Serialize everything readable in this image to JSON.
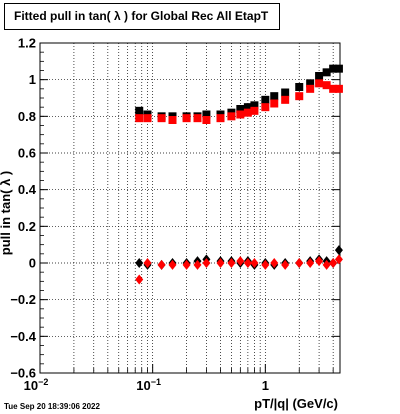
{
  "chart_data": {
    "type": "scatter",
    "title": "Fitted pull in tan( λ ) for Global Rec All EtapT",
    "xlabel": "pT/|q| (GeV/c)",
    "ylabel": "pull in tan( λ )",
    "xscale": "log",
    "xlim": [
      0.01,
      4.6
    ],
    "ylim": [
      -0.6,
      1.2
    ],
    "grid": true,
    "x_ticks": [
      {
        "v": 0.01,
        "label": "10",
        "sup": "−2"
      },
      {
        "v": 0.1,
        "label": "10",
        "sup": "−1"
      },
      {
        "v": 1,
        "label": "1",
        "sup": ""
      }
    ],
    "y_ticks": [
      {
        "v": -0.6,
        "label": "−0.6"
      },
      {
        "v": -0.4,
        "label": "−0.4"
      },
      {
        "v": -0.2,
        "label": "−0.2"
      },
      {
        "v": 0,
        "label": "0"
      },
      {
        "v": 0.2,
        "label": "0.2"
      },
      {
        "v": 0.4,
        "label": "0.4"
      },
      {
        "v": 0.6,
        "label": "0.6"
      },
      {
        "v": 0.8,
        "label": "0.8"
      },
      {
        "v": 1,
        "label": "1"
      },
      {
        "v": 1.2,
        "label": "1.2"
      }
    ],
    "series": [
      {
        "color": "#000000",
        "marker": "square",
        "x": [
          0.076,
          0.09,
          0.12,
          0.15,
          0.2,
          0.25,
          0.3,
          0.4,
          0.5,
          0.6,
          0.7,
          0.8,
          1.0,
          1.2,
          1.5,
          2.0,
          2.5,
          3.0,
          3.5,
          4.0,
          4.5
        ],
        "y": [
          0.83,
          0.81,
          0.8,
          0.8,
          0.8,
          0.8,
          0.81,
          0.81,
          0.82,
          0.84,
          0.85,
          0.86,
          0.89,
          0.91,
          0.93,
          0.96,
          0.98,
          1.02,
          1.04,
          1.06,
          1.06
        ]
      },
      {
        "color": "#ff0000",
        "marker": "square",
        "x": [
          0.076,
          0.09,
          0.12,
          0.15,
          0.2,
          0.25,
          0.3,
          0.4,
          0.5,
          0.6,
          0.7,
          0.8,
          1.0,
          1.2,
          1.5,
          2.0,
          2.5,
          3.0,
          3.5,
          4.0,
          4.5
        ],
        "y": [
          0.79,
          0.79,
          0.79,
          0.78,
          0.79,
          0.79,
          0.78,
          0.79,
          0.8,
          0.81,
          0.82,
          0.83,
          0.85,
          0.87,
          0.89,
          0.91,
          0.95,
          0.98,
          0.97,
          0.95,
          0.95
        ]
      },
      {
        "color": "#000000",
        "marker": "diamond",
        "x": [
          0.076,
          0.09,
          0.12,
          0.15,
          0.2,
          0.25,
          0.3,
          0.4,
          0.5,
          0.6,
          0.7,
          0.8,
          1.0,
          1.2,
          1.5,
          2.0,
          2.5,
          3.0,
          3.5,
          4.0,
          4.5
        ],
        "y": [
          0.0,
          -0.01,
          -0.01,
          0.0,
          0.0,
          0.01,
          0.02,
          0.01,
          0.01,
          0.0,
          0.01,
          -0.01,
          0.0,
          -0.01,
          0.0,
          0.0,
          0.01,
          0.02,
          0.01,
          0.0,
          0.07
        ]
      },
      {
        "color": "#ff0000",
        "marker": "diamond",
        "x": [
          0.076,
          0.09,
          0.12,
          0.15,
          0.2,
          0.25,
          0.3,
          0.4,
          0.5,
          0.6,
          0.7,
          0.8,
          1.0,
          1.2,
          1.5,
          2.0,
          2.5,
          3.0,
          3.5,
          4.0,
          4.5
        ],
        "y": [
          -0.09,
          0.0,
          -0.01,
          -0.01,
          -0.01,
          -0.01,
          0.0,
          0.0,
          0.0,
          0.01,
          0.0,
          0.0,
          -0.01,
          0.0,
          -0.01,
          0.0,
          0.0,
          0.01,
          -0.01,
          0.0,
          0.02
        ]
      }
    ]
  },
  "footer": {
    "timestamp": "Tue Sep 20 18:39:06 2022"
  }
}
